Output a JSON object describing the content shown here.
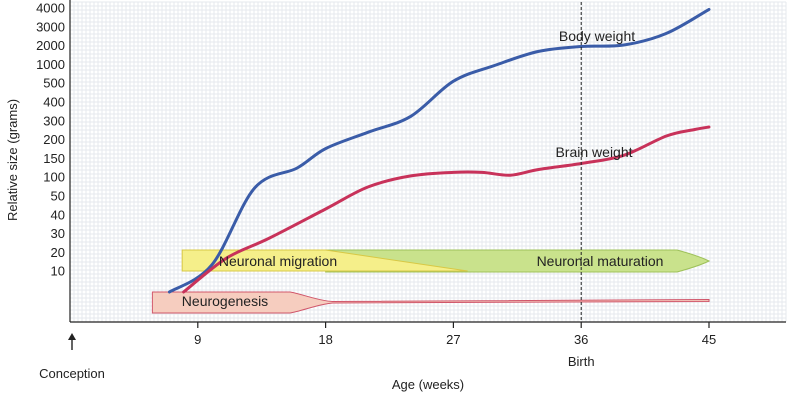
{
  "chart_data": {
    "type": "line",
    "title": "",
    "xlabel": "Age (weeks)",
    "ylabel": "Relative size (grams)",
    "xlim": [
      0,
      45
    ],
    "x_ticks": [
      9,
      18,
      27,
      36,
      45
    ],
    "y_ticks": [
      "10",
      "20",
      "30",
      "40",
      "50",
      "60",
      "70",
      "80",
      "90",
      "100",
      "150",
      "200",
      "250",
      "300",
      "400",
      "500",
      "1000",
      "2000",
      "3000",
      "4000"
    ],
    "y_tick_values": [
      10,
      20,
      30,
      40,
      50,
      60,
      70,
      80,
      90,
      100,
      150,
      200,
      250,
      300,
      400,
      500,
      1000,
      2000,
      3000,
      4000
    ],
    "grid": true,
    "series": [
      {
        "name": "Body weight",
        "color": "#3a5ca8",
        "points": [
          [
            7,
            -6
          ],
          [
            10,
            12
          ],
          [
            13,
            50
          ],
          [
            16,
            100
          ],
          [
            18,
            190
          ],
          [
            21,
            270
          ],
          [
            24,
            350
          ],
          [
            27,
            600
          ],
          [
            30,
            1000
          ],
          [
            33,
            1600
          ],
          [
            36,
            1900
          ],
          [
            39,
            2000
          ],
          [
            42,
            2500
          ],
          [
            45,
            3700
          ]
        ]
      },
      {
        "name": "Brain weight",
        "color": "#c8325a",
        "points": [
          [
            8,
            -6
          ],
          [
            11,
            15
          ],
          [
            14,
            25
          ],
          [
            18,
            40
          ],
          [
            21,
            52
          ],
          [
            24,
            76
          ],
          [
            27,
            86
          ],
          [
            29,
            86
          ],
          [
            31,
            78
          ],
          [
            33,
            95
          ],
          [
            36,
            116
          ],
          [
            39,
            152
          ],
          [
            42,
            250
          ],
          [
            44,
            285
          ],
          [
            45,
            300
          ]
        ]
      }
    ],
    "bands": [
      {
        "name": "Neurogenesis",
        "start": 5.8,
        "end": 45,
        "color": "#f6cdbf"
      },
      {
        "name": "Neuronal migration",
        "start": 7.9,
        "end": 28,
        "color": "#f5ef8a"
      },
      {
        "name": "Neuronal maturation",
        "start": 18,
        "end": 45,
        "color": "#c9e28c"
      }
    ],
    "annotations": {
      "birth": {
        "x": 36,
        "label": "Birth"
      },
      "conception": {
        "x": 0,
        "label": "Conception"
      }
    }
  }
}
